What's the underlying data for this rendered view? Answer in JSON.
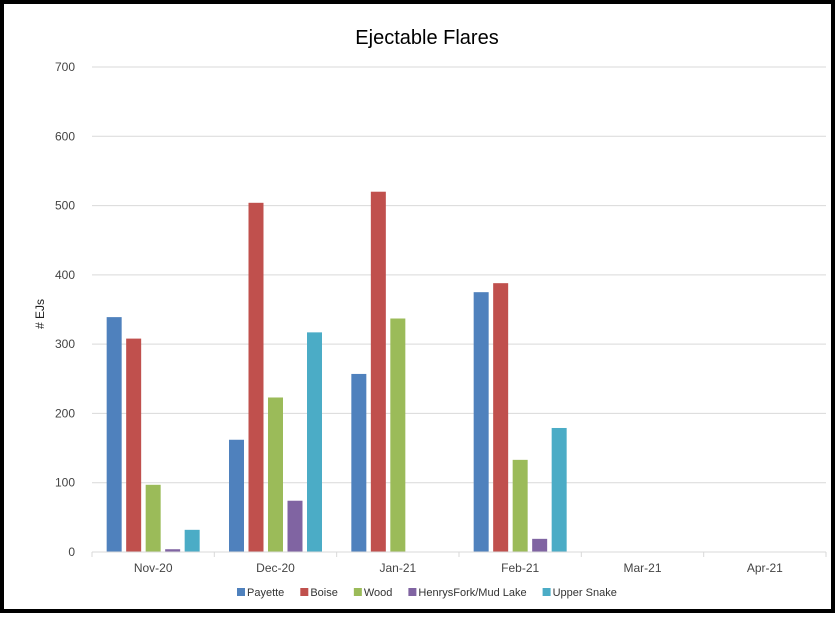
{
  "chart_data": {
    "type": "bar",
    "title": "Ejectable Flares",
    "xlabel": "",
    "ylabel": "# EJs",
    "ylim": [
      0,
      700
    ],
    "yticks": [
      0,
      100,
      200,
      300,
      400,
      500,
      600,
      700
    ],
    "grid": true,
    "legend_position": "bottom",
    "categories": [
      "Nov-20",
      "Dec-20",
      "Jan-21",
      "Feb-21",
      "Mar-21",
      "Apr-21"
    ],
    "series": [
      {
        "name": "Payette",
        "color": "#4f81bd",
        "values": [
          339,
          162,
          257,
          375,
          null,
          null
        ]
      },
      {
        "name": "Boise",
        "color": "#c0504d",
        "values": [
          308,
          504,
          520,
          388,
          null,
          null
        ]
      },
      {
        "name": "Wood",
        "color": "#9bbb59",
        "values": [
          97,
          223,
          337,
          133,
          null,
          null
        ]
      },
      {
        "name": "HenrysFork/Mud Lake",
        "color": "#8064a2",
        "values": [
          4,
          74,
          0,
          19,
          null,
          null
        ]
      },
      {
        "name": "Upper Snake",
        "color": "#4bacc6",
        "values": [
          32,
          317,
          0,
          179,
          null,
          null
        ]
      }
    ]
  }
}
